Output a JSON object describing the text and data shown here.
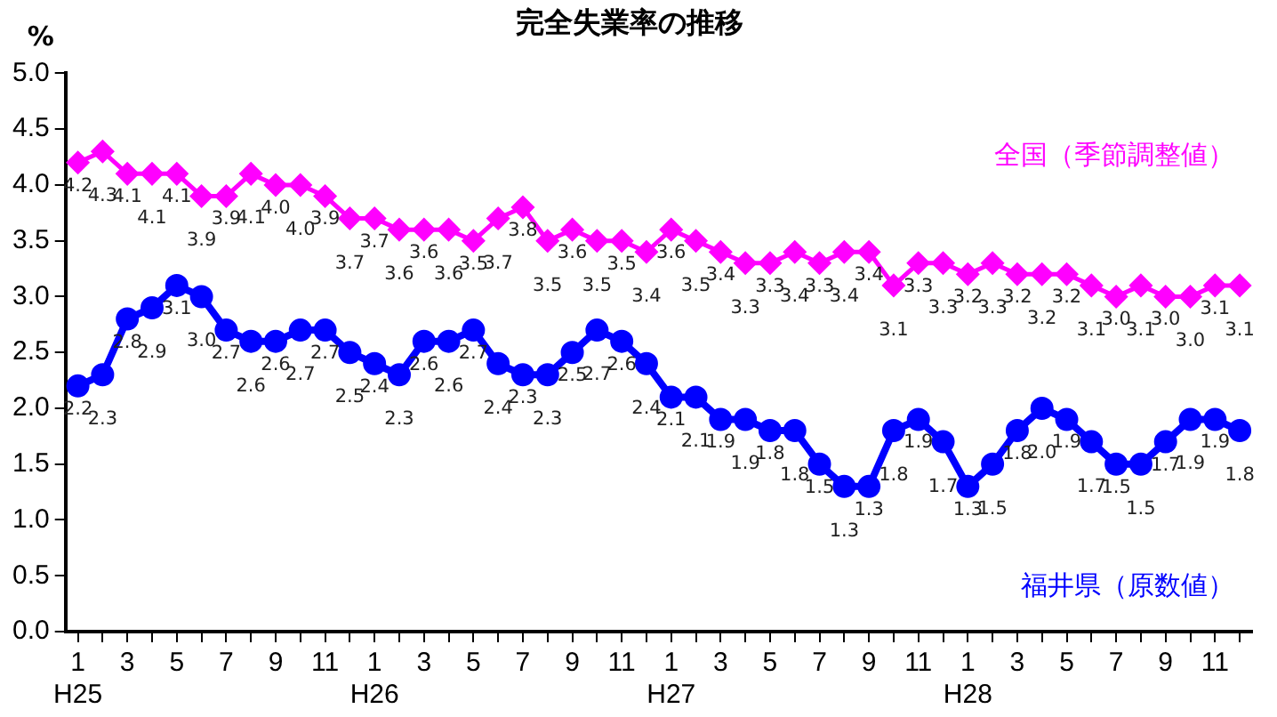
{
  "chart_data": {
    "type": "line",
    "title": "完全失業率の推移",
    "ylabel": "%",
    "categories": [
      "1\nH25",
      null,
      "3",
      null,
      "5",
      null,
      "7",
      null,
      "9",
      null,
      "11",
      null,
      "1\nH26",
      null,
      "3",
      null,
      "5",
      null,
      "7",
      null,
      "9",
      null,
      "11",
      null,
      "1\nH27",
      null,
      "3",
      null,
      "5",
      null,
      "7",
      null,
      "9",
      null,
      "11",
      null,
      "1\nH28",
      null,
      "3",
      null,
      "5",
      null,
      "7",
      null,
      "9",
      null,
      "11",
      null
    ],
    "series": [
      {
        "name": "全国（季節調整値）",
        "color": "#ff00ff",
        "marker": "diamond",
        "values": [
          4.2,
          4.3,
          4.1,
          4.1,
          4.1,
          3.9,
          3.9,
          4.1,
          4.0,
          4.0,
          3.9,
          3.7,
          3.7,
          3.6,
          3.6,
          3.6,
          3.5,
          3.7,
          3.8,
          3.5,
          3.6,
          3.5,
          3.5,
          3.4,
          3.6,
          3.5,
          3.4,
          3.3,
          3.3,
          3.4,
          3.3,
          3.4,
          3.4,
          3.1,
          3.3,
          3.3,
          3.2,
          3.3,
          3.2,
          3.2,
          3.2,
          3.1,
          3.0,
          3.1,
          3.0,
          3.0,
          3.1,
          3.1
        ],
        "value_labels": [
          "4.2",
          "4.3",
          "4.1",
          "4.1",
          "4.1",
          "3.9",
          "3.9",
          "4.1",
          "4.0",
          "4.0",
          "3.9",
          "3.7",
          "3.7",
          "3.6",
          "3.6",
          "3.6",
          "3.5",
          "3.7",
          "3.8",
          "3.5",
          "3.6",
          "3.5",
          "3.5",
          "3.4",
          "3.6",
          "3.5",
          "3.4",
          "3.3",
          "3.3",
          "3.4",
          "3.3",
          "3.4",
          "3.4",
          "3.1",
          "3.3",
          "3.3",
          "3.2",
          "3.3",
          "3.2",
          "3.2",
          "3.2",
          "3.1",
          "3.0",
          "3.1",
          "3.0",
          "3.0",
          "3.1",
          "3.1"
        ]
      },
      {
        "name": "福井県（原数値）",
        "color": "#0000ff",
        "marker": "circle",
        "values": [
          2.2,
          2.3,
          2.8,
          2.9,
          3.1,
          3.0,
          2.7,
          2.6,
          2.6,
          2.7,
          2.7,
          2.5,
          2.4,
          2.3,
          2.6,
          2.6,
          2.7,
          2.4,
          2.3,
          2.3,
          2.5,
          2.7,
          2.6,
          2.4,
          2.1,
          2.1,
          1.9,
          1.9,
          1.8,
          1.8,
          1.5,
          1.3,
          1.3,
          1.8,
          1.9,
          1.7,
          1.3,
          1.5,
          1.8,
          2.0,
          1.9,
          1.7,
          1.5,
          1.5,
          1.7,
          1.9,
          1.9,
          1.8
        ],
        "value_labels": [
          "2.2",
          "2.3",
          "2.8",
          "2.9",
          "3.1",
          "3.0",
          "2.7",
          "2.6",
          "2.6",
          "2.7",
          "2.7",
          "2.5",
          "2.4",
          "2.3",
          "2.6",
          "2.6",
          "2.7",
          "2.4",
          "2.3",
          "2.3",
          "2.5",
          "2.7",
          "2.6",
          "2.4",
          "2.1",
          "2.1",
          "1.9",
          "1.9",
          "1.8",
          "1.8",
          "1.5",
          "1.3",
          "1.3",
          "1.8",
          "1.9",
          "1.7",
          "1.3",
          "1.5",
          "1.8",
          "2.0",
          "1.9",
          "1.7",
          "1.5",
          "1.5",
          "1.7",
          "1.9",
          "1.9",
          "1.8"
        ]
      }
    ],
    "ylim": [
      0,
      5
    ],
    "yticks": [
      {
        "value": 0,
        "label": "0.0"
      },
      {
        "value": 0.5,
        "label": "0.5"
      },
      {
        "value": 1,
        "label": "1.0"
      },
      {
        "value": 1.5,
        "label": "1.5"
      },
      {
        "value": 2,
        "label": "2.0"
      },
      {
        "value": 2.5,
        "label": "2.5"
      },
      {
        "value": 3,
        "label": "3.0"
      },
      {
        "value": 3.5,
        "label": "3.5"
      },
      {
        "value": 4,
        "label": "4.0"
      },
      {
        "value": 4.5,
        "label": "4.5"
      },
      {
        "value": 5,
        "label": "5.0"
      }
    ],
    "grid": false,
    "legend": false
  }
}
